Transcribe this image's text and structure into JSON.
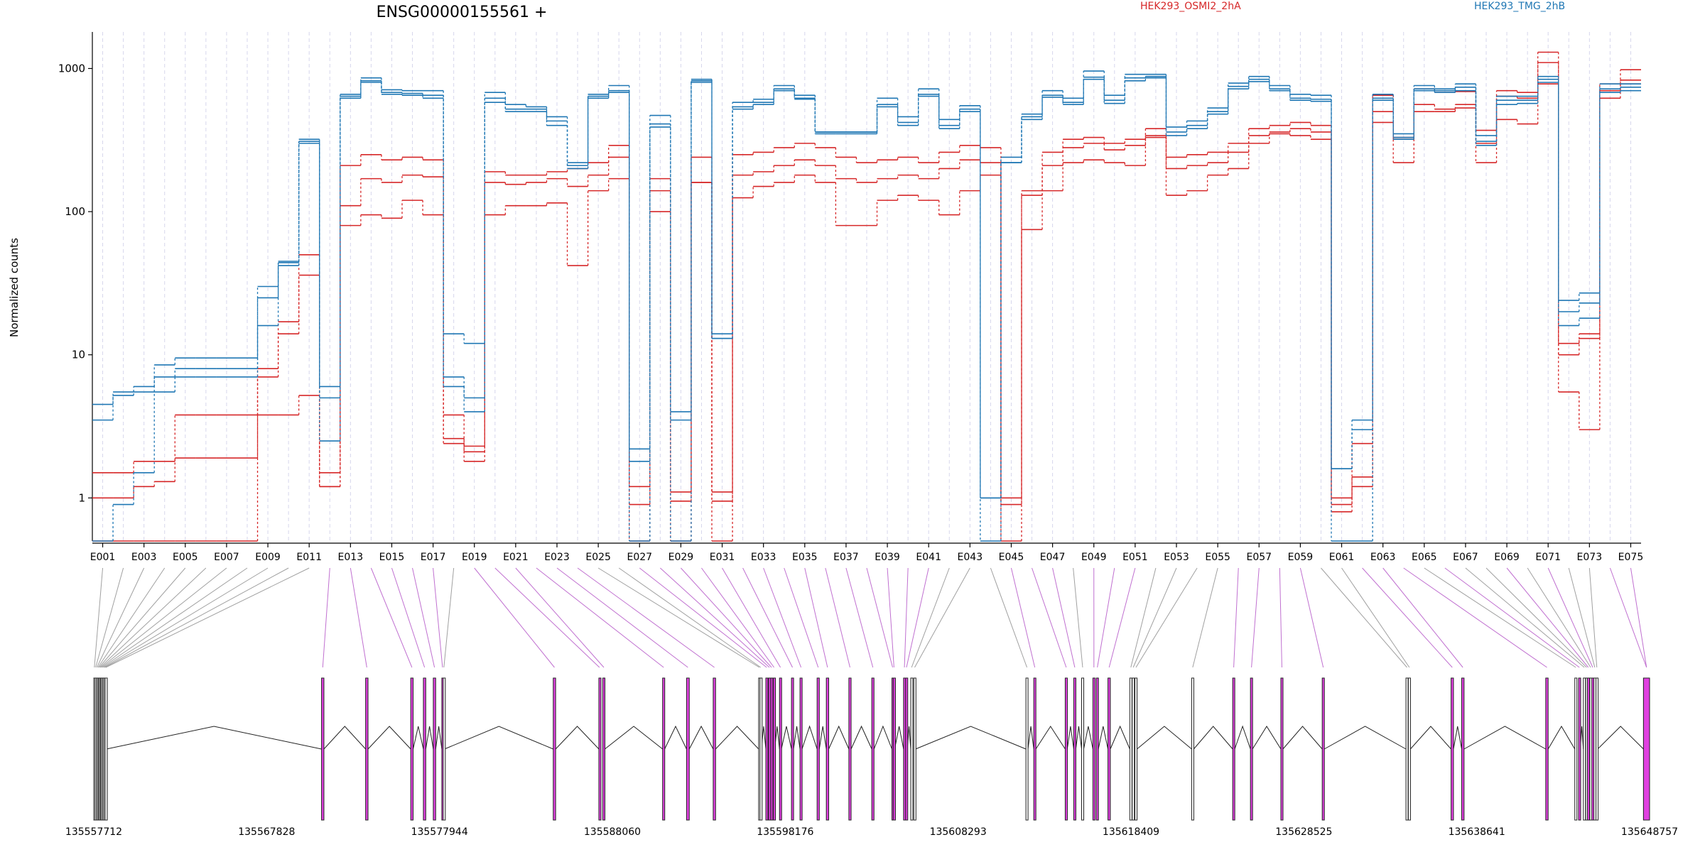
{
  "chart_data": {
    "type": "line",
    "title": "ENSG00000155561 +",
    "ylabel": "Normalized counts",
    "yscale": "log",
    "ylim": [
      0.5,
      1800
    ],
    "yticks": [
      1,
      10,
      100,
      1000
    ],
    "ytick_labels": [
      "1",
      "10",
      "100",
      "1000"
    ],
    "grid": "vertical dashed per exon",
    "legend_placement": "top-right",
    "legend": [
      {
        "label": "HEK293_OSMI2_2hA",
        "color": "#d62728"
      },
      {
        "label": "HEK293_TMG_2hB",
        "color": "#1f77b4"
      }
    ],
    "exons": [
      "E001",
      "E002",
      "E003",
      "E004",
      "E005",
      "E006",
      "E007",
      "E008",
      "E009",
      "E010",
      "E011",
      "E012",
      "E013",
      "E014",
      "E015",
      "E016",
      "E017",
      "E018",
      "E019",
      "E020",
      "E021",
      "E022",
      "E023",
      "E024",
      "E025",
      "E026",
      "E027",
      "E028",
      "E029",
      "E030",
      "E031",
      "E032",
      "E033",
      "E034",
      "E035",
      "E036",
      "E037",
      "E038",
      "E039",
      "E040",
      "E041",
      "E042",
      "E043",
      "E044",
      "E045",
      "E046",
      "E047",
      "E048",
      "E049",
      "E050",
      "E051",
      "E052",
      "E053",
      "E054",
      "E055",
      "E056",
      "E057",
      "E058",
      "E059",
      "E060",
      "E061",
      "E062",
      "E063",
      "E064",
      "E065",
      "E066",
      "E067",
      "E068",
      "E069",
      "E070",
      "E071",
      "E072",
      "E073",
      "E074",
      "E075"
    ],
    "xtick_labels": [
      "E001",
      "E003",
      "E005",
      "E007",
      "E009",
      "E011",
      "E013",
      "E015",
      "E017",
      "E019",
      "E021",
      "E023",
      "E025",
      "E027",
      "E029",
      "E031",
      "E033",
      "E035",
      "E037",
      "E039",
      "E041",
      "E043",
      "E045",
      "E047",
      "E049",
      "E051",
      "E053",
      "E055",
      "E057",
      "E059",
      "E061",
      "E063",
      "E065",
      "E067",
      "E069",
      "E071",
      "E073",
      "E075"
    ],
    "series": [
      {
        "name": "HEK293_OSMI2_2hA",
        "group": "A",
        "color": "#d62728",
        "values": [
          1.5,
          1.5,
          1.8,
          1.8,
          1.9,
          1.9,
          1.9,
          1.9,
          7,
          14,
          50,
          1.5,
          210,
          250,
          230,
          240,
          230,
          2.4,
          2.3,
          190,
          180,
          180,
          190,
          200,
          220,
          290,
          1.2,
          170,
          1.1,
          240,
          1.1,
          250,
          260,
          280,
          300,
          280,
          240,
          220,
          230,
          240,
          220,
          260,
          290,
          280,
          1.0,
          140,
          260,
          320,
          330,
          300,
          320,
          380,
          240,
          250,
          260,
          300,
          380,
          400,
          420,
          400,
          1.0,
          2.4,
          650,
          330,
          720,
          680,
          690,
          370,
          700,
          680,
          1300,
          12,
          14,
          780,
          980
        ]
      },
      {
        "name": "HEK293_OSMI2_2hA",
        "group": "A",
        "color": "#d62728",
        "values": [
          1.0,
          1.0,
          1.2,
          1.3,
          3.8,
          3.8,
          3.8,
          3.8,
          8,
          17,
          36,
          1.2,
          110,
          170,
          160,
          180,
          175,
          3.8,
          2.1,
          160,
          155,
          160,
          170,
          150,
          180,
          240,
          0.9,
          140,
          0.95,
          160,
          0.95,
          180,
          190,
          210,
          230,
          210,
          170,
          160,
          170,
          180,
          170,
          200,
          230,
          220,
          0.9,
          130,
          210,
          280,
          300,
          270,
          290,
          340,
          200,
          210,
          220,
          260,
          340,
          360,
          380,
          360,
          0.9,
          1.4,
          500,
          320,
          560,
          520,
          560,
          300,
          640,
          620,
          1100,
          10,
          13,
          620,
          830
        ]
      },
      {
        "name": "HEK293_OSMI2_2hA",
        "group": "A",
        "color": "#d62728",
        "values": [
          0.5,
          0.5,
          0.5,
          0.5,
          0.5,
          0.5,
          0.5,
          0.5,
          3.8,
          3.8,
          5.2,
          1.2,
          80,
          95,
          90,
          120,
          95,
          2.6,
          1.8,
          95,
          110,
          110,
          115,
          42,
          140,
          170,
          0.5,
          100,
          0.5,
          160,
          0.5,
          125,
          150,
          160,
          180,
          160,
          80,
          80,
          120,
          130,
          120,
          95,
          140,
          180,
          0.5,
          75,
          140,
          220,
          230,
          220,
          210,
          330,
          130,
          140,
          180,
          200,
          300,
          350,
          340,
          320,
          0.8,
          1.2,
          420,
          220,
          500,
          500,
          530,
          220,
          440,
          410,
          780,
          5.5,
          3.0,
          700,
          780
        ]
      },
      {
        "name": "HEK293_TMG_2hB",
        "group": "B",
        "color": "#1f77b4",
        "values": [
          4.5,
          5.5,
          6.0,
          8.5,
          9.5,
          9.5,
          9.5,
          9.5,
          30,
          45,
          310,
          6,
          660,
          860,
          710,
          700,
          700,
          14,
          12,
          680,
          560,
          540,
          460,
          220,
          660,
          760,
          2.2,
          470,
          4.0,
          840,
          14,
          580,
          610,
          760,
          650,
          360,
          360,
          360,
          620,
          460,
          720,
          440,
          550,
          1.0,
          240,
          480,
          700,
          620,
          960,
          650,
          910,
          910,
          390,
          430,
          530,
          790,
          880,
          760,
          660,
          650,
          1.6,
          3.5,
          660,
          350,
          760,
          720,
          780,
          340,
          640,
          640,
          880,
          24,
          27,
          780,
          780
        ]
      },
      {
        "name": "HEK293_TMG_2hB",
        "group": "B",
        "color": "#1f77b4",
        "values": [
          3.5,
          5.2,
          5.5,
          7.0,
          8.0,
          8.0,
          8.0,
          8.0,
          25,
          44,
          320,
          5,
          640,
          820,
          680,
          670,
          650,
          7,
          5,
          620,
          520,
          520,
          430,
          210,
          640,
          700,
          1.8,
          410,
          3.5,
          820,
          13,
          540,
          580,
          720,
          620,
          360,
          360,
          360,
          560,
          420,
          660,
          400,
          520,
          1.0,
          220,
          460,
          650,
          580,
          870,
          600,
          860,
          880,
          360,
          400,
          500,
          750,
          840,
          720,
          620,
          610,
          1.6,
          3.0,
          620,
          330,
          720,
          700,
          740,
          310,
          600,
          600,
          840,
          20,
          23,
          720,
          740
        ]
      },
      {
        "name": "HEK293_TMG_2hB",
        "group": "B",
        "color": "#1f77b4",
        "values": [
          0.5,
          0.9,
          1.5,
          5.5,
          7.0,
          7.0,
          7.0,
          7.0,
          16,
          42,
          300,
          2.5,
          620,
          800,
          660,
          650,
          620,
          6,
          4,
          580,
          500,
          500,
          400,
          200,
          620,
          680,
          0.5,
          390,
          0.5,
          800,
          13,
          520,
          560,
          700,
          610,
          350,
          350,
          350,
          540,
          400,
          640,
          380,
          500,
          0.5,
          220,
          440,
          630,
          560,
          840,
          570,
          820,
          860,
          340,
          380,
          480,
          720,
          810,
          700,
          600,
          590,
          0.5,
          0.5,
          600,
          320,
          700,
          680,
          700,
          290,
          560,
          570,
          800,
          16,
          18,
          680,
          700
        ]
      }
    ],
    "genomic_ticks": [
      135557712,
      135567828,
      135577944,
      135588060,
      135598176,
      135608293,
      135618409,
      135628525,
      135638641,
      135648757
    ],
    "genomic_range": [
      135557712,
      135648757
    ],
    "exon_models": [
      {
        "id": "E001",
        "start": 135557712,
        "end": 135557780,
        "status": "not significant"
      },
      {
        "id": "E002",
        "start": 135557780,
        "end": 135557860,
        "status": "not significant"
      },
      {
        "id": "E003",
        "start": 135557860,
        "end": 135557930,
        "status": "not significant"
      },
      {
        "id": "E004",
        "start": 135557930,
        "end": 135557990,
        "status": "not significant"
      },
      {
        "id": "E005",
        "start": 135557990,
        "end": 135558050,
        "status": "not significant"
      },
      {
        "id": "E006",
        "start": 135558050,
        "end": 135558110,
        "status": "not significant"
      },
      {
        "id": "E007",
        "start": 135558110,
        "end": 135558170,
        "status": "not significant"
      },
      {
        "id": "E008",
        "start": 135558170,
        "end": 135558240,
        "status": "not significant"
      },
      {
        "id": "E009",
        "start": 135558240,
        "end": 135558310,
        "status": "not significant"
      },
      {
        "id": "E010",
        "start": 135558310,
        "end": 135558380,
        "status": "not significant"
      },
      {
        "id": "E011",
        "start": 135558380,
        "end": 135558450,
        "status": "not significant"
      },
      {
        "id": "E012",
        "start": 135571040,
        "end": 135571180,
        "status": "significant"
      },
      {
        "id": "E013",
        "start": 135573620,
        "end": 135573760,
        "status": "significant"
      },
      {
        "id": "E014",
        "start": 135576260,
        "end": 135576400,
        "status": "significant"
      },
      {
        "id": "E015",
        "start": 135577000,
        "end": 135577140,
        "status": "significant"
      },
      {
        "id": "E016",
        "start": 135577580,
        "end": 135577720,
        "status": "significant"
      },
      {
        "id": "E017",
        "start": 135578080,
        "end": 135578160,
        "status": "significant"
      },
      {
        "id": "E018",
        "start": 135578160,
        "end": 135578240,
        "status": "not significant"
      },
      {
        "id": "E019",
        "start": 135584600,
        "end": 135584740,
        "status": "significant"
      },
      {
        "id": "E020",
        "start": 135587270,
        "end": 135587340,
        "status": "significant"
      },
      {
        "id": "E021",
        "start": 135587500,
        "end": 135587620,
        "status": "significant"
      },
      {
        "id": "E022",
        "start": 135591000,
        "end": 135591120,
        "status": "significant"
      },
      {
        "id": "E023",
        "start": 135592400,
        "end": 135592560,
        "status": "significant"
      },
      {
        "id": "E024",
        "start": 135593960,
        "end": 135594100,
        "status": "significant"
      },
      {
        "id": "E025",
        "start": 135596620,
        "end": 135596700,
        "status": "not significant"
      },
      {
        "id": "E026",
        "start": 135596700,
        "end": 135596780,
        "status": "not significant"
      },
      {
        "id": "E027",
        "start": 135597040,
        "end": 135597140,
        "status": "significant"
      },
      {
        "id": "E028",
        "start": 135597200,
        "end": 135597300,
        "status": "significant"
      },
      {
        "id": "E029",
        "start": 135597330,
        "end": 135597420,
        "status": "significant"
      },
      {
        "id": "E030",
        "start": 135597480,
        "end": 135597560,
        "status": "significant"
      },
      {
        "id": "E031",
        "start": 135597840,
        "end": 135597950,
        "status": "significant"
      },
      {
        "id": "E032",
        "start": 135598540,
        "end": 135598660,
        "status": "significant"
      },
      {
        "id": "E033",
        "start": 135599040,
        "end": 135599160,
        "status": "significant"
      },
      {
        "id": "E034",
        "start": 135600040,
        "end": 135600170,
        "status": "significant"
      },
      {
        "id": "E035",
        "start": 135600580,
        "end": 135600720,
        "status": "significant"
      },
      {
        "id": "E036",
        "start": 135601900,
        "end": 135602030,
        "status": "significant"
      },
      {
        "id": "E037",
        "start": 135603240,
        "end": 135603370,
        "status": "significant"
      },
      {
        "id": "E038",
        "start": 135604420,
        "end": 135604500,
        "status": "significant"
      },
      {
        "id": "E039",
        "start": 135604500,
        "end": 135604580,
        "status": "significant"
      },
      {
        "id": "E040",
        "start": 135605100,
        "end": 135605200,
        "status": "significant"
      },
      {
        "id": "E041",
        "start": 135605220,
        "end": 135605320,
        "status": "significant"
      },
      {
        "id": "E042",
        "start": 135605520,
        "end": 135605620,
        "status": "not significant"
      },
      {
        "id": "E043",
        "start": 135605700,
        "end": 135605800,
        "status": "not significant"
      },
      {
        "id": "E044",
        "start": 135612260,
        "end": 135612380,
        "status": "not significant"
      },
      {
        "id": "E045",
        "start": 135612720,
        "end": 135612840,
        "status": "significant"
      },
      {
        "id": "E046",
        "start": 135614560,
        "end": 135614680,
        "status": "significant"
      },
      {
        "id": "E047",
        "start": 135615060,
        "end": 135615180,
        "status": "significant"
      },
      {
        "id": "E048",
        "start": 135615520,
        "end": 135615640,
        "status": "not significant"
      },
      {
        "id": "E049",
        "start": 135616180,
        "end": 135616300,
        "status": "significant"
      },
      {
        "id": "E050",
        "start": 135616380,
        "end": 135616500,
        "status": "significant"
      },
      {
        "id": "E051",
        "start": 135617060,
        "end": 135617200,
        "status": "significant"
      },
      {
        "id": "E052",
        "start": 135618340,
        "end": 135618460,
        "status": "not significant"
      },
      {
        "id": "E053",
        "start": 135618480,
        "end": 135618600,
        "status": "not significant"
      },
      {
        "id": "E054",
        "start": 135618640,
        "end": 135618760,
        "status": "not significant"
      },
      {
        "id": "E055",
        "start": 135621960,
        "end": 135622080,
        "status": "not significant"
      },
      {
        "id": "E056",
        "start": 135624360,
        "end": 135624480,
        "status": "significant"
      },
      {
        "id": "E057",
        "start": 135625400,
        "end": 135625520,
        "status": "significant"
      },
      {
        "id": "E058",
        "start": 135627180,
        "end": 135627300,
        "status": "significant"
      },
      {
        "id": "E059",
        "start": 135629600,
        "end": 135629720,
        "status": "significant"
      },
      {
        "id": "E060",
        "start": 135634500,
        "end": 135634620,
        "status": "not significant"
      },
      {
        "id": "E061",
        "start": 135634640,
        "end": 135634760,
        "status": "not significant"
      },
      {
        "id": "E062",
        "start": 135637140,
        "end": 135637280,
        "status": "significant"
      },
      {
        "id": "E063",
        "start": 135637760,
        "end": 135637900,
        "status": "significant"
      },
      {
        "id": "E064",
        "start": 135642680,
        "end": 135642820,
        "status": "significant"
      },
      {
        "id": "E065",
        "start": 135644380,
        "end": 135644500,
        "status": "not significant"
      },
      {
        "id": "E066",
        "start": 135644600,
        "end": 135644700,
        "status": "significant"
      },
      {
        "id": "E067",
        "start": 135644880,
        "end": 135645000,
        "status": "not significant"
      },
      {
        "id": "E068",
        "start": 135645020,
        "end": 135645120,
        "status": "not significant"
      },
      {
        "id": "E069",
        "start": 135645120,
        "end": 135645220,
        "status": "significant"
      },
      {
        "id": "E070",
        "start": 135645260,
        "end": 135645360,
        "status": "not significant"
      },
      {
        "id": "E071",
        "start": 135645380,
        "end": 135645480,
        "status": "significant"
      },
      {
        "id": "E072",
        "start": 135645500,
        "end": 135645600,
        "status": "not significant"
      },
      {
        "id": "E073",
        "start": 135645620,
        "end": 135645720,
        "status": "not significant"
      },
      {
        "id": "E074",
        "start": 135648400,
        "end": 135648757,
        "status": "significant"
      },
      {
        "id": "E075",
        "start": 135648400,
        "end": 135648757,
        "status": "significant"
      }
    ]
  },
  "colors": {
    "groupA": "#d62728",
    "groupB": "#1f77b4",
    "significant_exon": "#e040e0",
    "nonsignificant_exon": "#ffffff",
    "significant_connector": "#c070d0",
    "nonsignificant_connector": "#a0a0a0",
    "grid": "#d6d6ec"
  }
}
